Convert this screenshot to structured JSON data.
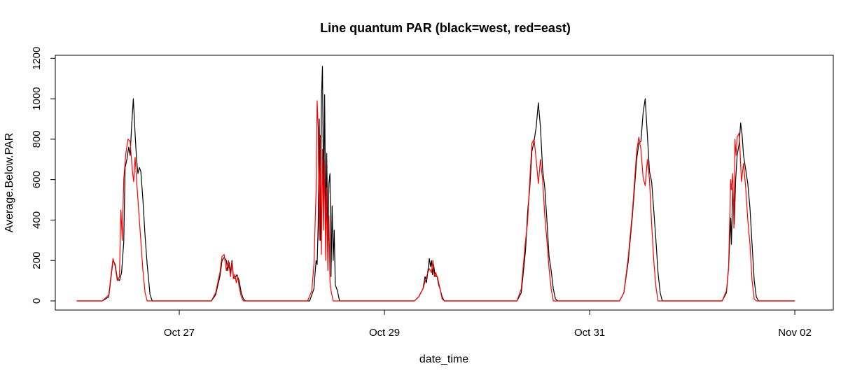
{
  "chart_data": {
    "type": "line",
    "title": "Line quantum PAR (black=west, red=east)",
    "xlabel": "date_time",
    "ylabel": "Average.Below.PAR",
    "x_unit": "date",
    "x_ticks": [
      {
        "label": "Oct 27",
        "date": "2023-10-27"
      },
      {
        "label": "Oct 29",
        "date": "2023-10-29"
      },
      {
        "label": "Oct 31",
        "date": "2023-10-31"
      },
      {
        "label": "Nov 02",
        "date": "2023-11-02"
      }
    ],
    "y_ticks": [
      0,
      200,
      400,
      600,
      800,
      1000,
      1200
    ],
    "xlim": [
      "2023-10-25 19:00",
      "2023-11-02 09:00"
    ],
    "ylim": [
      -45,
      1215
    ],
    "legend": "none",
    "grid": false,
    "series": [
      {
        "color": "#000000",
        "points": [
          [
            "2023-10-26 00:00",
            0
          ],
          [
            "2023-10-26 06:00",
            0
          ],
          [
            "2023-10-26 07:30",
            20
          ],
          [
            "2023-10-26 08:30",
            200
          ],
          [
            "2023-10-26 09:00",
            180
          ],
          [
            "2023-10-26 09:30",
            110
          ],
          [
            "2023-10-26 10:00",
            100
          ],
          [
            "2023-10-26 10:30",
            140
          ],
          [
            "2023-10-26 11:00",
            290
          ],
          [
            "2023-10-26 11:20",
            660
          ],
          [
            "2023-10-26 11:45",
            700
          ],
          [
            "2023-10-26 12:10",
            760
          ],
          [
            "2023-10-26 12:30",
            720
          ],
          [
            "2023-10-26 12:50",
            860
          ],
          [
            "2023-10-26 13:15",
            1000
          ],
          [
            "2023-10-26 13:40",
            830
          ],
          [
            "2023-10-26 14:00",
            700
          ],
          [
            "2023-10-26 14:20",
            630
          ],
          [
            "2023-10-26 14:40",
            660
          ],
          [
            "2023-10-26 15:00",
            640
          ],
          [
            "2023-10-26 15:30",
            500
          ],
          [
            "2023-10-26 16:00",
            320
          ],
          [
            "2023-10-26 16:30",
            180
          ],
          [
            "2023-10-26 17:10",
            30
          ],
          [
            "2023-10-26 17:40",
            0
          ],
          [
            "2023-10-27 07:30",
            0
          ],
          [
            "2023-10-27 08:30",
            30
          ],
          [
            "2023-10-27 09:30",
            120
          ],
          [
            "2023-10-27 10:00",
            200
          ],
          [
            "2023-10-27 10:30",
            215
          ],
          [
            "2023-10-27 11:00",
            200
          ],
          [
            "2023-10-27 11:20",
            150
          ],
          [
            "2023-10-27 11:40",
            190
          ],
          [
            "2023-10-27 12:00",
            140
          ],
          [
            "2023-10-27 12:20",
            200
          ],
          [
            "2023-10-27 12:40",
            120
          ],
          [
            "2023-10-27 13:00",
            110
          ],
          [
            "2023-10-27 13:30",
            130
          ],
          [
            "2023-10-27 14:00",
            100
          ],
          [
            "2023-10-27 14:30",
            40
          ],
          [
            "2023-10-27 15:00",
            10
          ],
          [
            "2023-10-27 15:30",
            0
          ],
          [
            "2023-10-28 06:30",
            0
          ],
          [
            "2023-10-28 07:30",
            60
          ],
          [
            "2023-10-28 08:00",
            200
          ],
          [
            "2023-10-28 08:15",
            180
          ],
          [
            "2023-10-28 08:30",
            380
          ],
          [
            "2023-10-28 08:45",
            900
          ],
          [
            "2023-10-28 09:00",
            300
          ],
          [
            "2023-10-28 09:15",
            1000
          ],
          [
            "2023-10-28 09:30",
            1160
          ],
          [
            "2023-10-28 09:45",
            500
          ],
          [
            "2023-10-28 10:00",
            1020
          ],
          [
            "2023-10-28 10:15",
            380
          ],
          [
            "2023-10-28 10:30",
            730
          ],
          [
            "2023-10-28 10:45",
            300
          ],
          [
            "2023-10-28 11:00",
            580
          ],
          [
            "2023-10-28 11:15",
            630
          ],
          [
            "2023-10-28 11:30",
            120
          ],
          [
            "2023-10-28 11:45",
            470
          ],
          [
            "2023-10-28 12:00",
            200
          ],
          [
            "2023-10-28 12:15",
            350
          ],
          [
            "2023-10-28 12:30",
            80
          ],
          [
            "2023-10-28 13:00",
            50
          ],
          [
            "2023-10-28 13:30",
            0
          ],
          [
            "2023-10-29 07:00",
            0
          ],
          [
            "2023-10-29 08:00",
            20
          ],
          [
            "2023-10-29 09:00",
            60
          ],
          [
            "2023-10-29 09:30",
            120
          ],
          [
            "2023-10-29 09:50",
            90
          ],
          [
            "2023-10-29 10:10",
            150
          ],
          [
            "2023-10-29 10:30",
            210
          ],
          [
            "2023-10-29 10:45",
            170
          ],
          [
            "2023-10-29 11:00",
            200
          ],
          [
            "2023-10-29 11:15",
            130
          ],
          [
            "2023-10-29 11:30",
            180
          ],
          [
            "2023-10-29 11:45",
            140
          ],
          [
            "2023-10-29 12:00",
            120
          ],
          [
            "2023-10-29 12:20",
            120
          ],
          [
            "2023-10-29 12:40",
            80
          ],
          [
            "2023-10-29 13:00",
            60
          ],
          [
            "2023-10-29 13:30",
            20
          ],
          [
            "2023-10-29 14:00",
            0
          ],
          [
            "2023-10-30 07:00",
            0
          ],
          [
            "2023-10-30 08:00",
            40
          ],
          [
            "2023-10-30 09:00",
            250
          ],
          [
            "2023-10-30 09:30",
            440
          ],
          [
            "2023-10-30 10:00",
            560
          ],
          [
            "2023-10-30 10:30",
            740
          ],
          [
            "2023-10-30 11:00",
            790
          ],
          [
            "2023-10-30 11:30",
            860
          ],
          [
            "2023-10-30 12:00",
            980
          ],
          [
            "2023-10-30 12:30",
            860
          ],
          [
            "2023-10-30 13:00",
            650
          ],
          [
            "2023-10-30 13:30",
            560
          ],
          [
            "2023-10-30 14:00",
            400
          ],
          [
            "2023-10-30 14:30",
            220
          ],
          [
            "2023-10-30 15:00",
            150
          ],
          [
            "2023-10-30 15:30",
            60
          ],
          [
            "2023-10-30 16:00",
            10
          ],
          [
            "2023-10-30 16:30",
            0
          ],
          [
            "2023-10-31 07:00",
            0
          ],
          [
            "2023-10-31 08:00",
            40
          ],
          [
            "2023-10-31 09:00",
            190
          ],
          [
            "2023-10-31 10:00",
            420
          ],
          [
            "2023-10-31 11:00",
            700
          ],
          [
            "2023-10-31 11:30",
            780
          ],
          [
            "2023-10-31 12:00",
            790
          ],
          [
            "2023-10-31 12:30",
            930
          ],
          [
            "2023-10-31 13:00",
            1000
          ],
          [
            "2023-10-31 13:30",
            820
          ],
          [
            "2023-10-31 14:00",
            640
          ],
          [
            "2023-10-31 14:30",
            590
          ],
          [
            "2023-10-31 15:00",
            450
          ],
          [
            "2023-10-31 15:30",
            300
          ],
          [
            "2023-10-31 16:00",
            140
          ],
          [
            "2023-10-31 16:30",
            40
          ],
          [
            "2023-10-31 17:00",
            0
          ],
          [
            "2023-11-01 07:00",
            0
          ],
          [
            "2023-11-01 08:00",
            40
          ],
          [
            "2023-11-01 08:30",
            160
          ],
          [
            "2023-11-01 09:00",
            410
          ],
          [
            "2023-11-01 09:10",
            280
          ],
          [
            "2023-11-01 09:30",
            560
          ],
          [
            "2023-11-01 09:50",
            380
          ],
          [
            "2023-11-01 10:10",
            600
          ],
          [
            "2023-11-01 10:30",
            720
          ],
          [
            "2023-11-01 11:00",
            780
          ],
          [
            "2023-11-01 11:20",
            880
          ],
          [
            "2023-11-01 11:40",
            820
          ],
          [
            "2023-11-01 12:00",
            720
          ],
          [
            "2023-11-01 12:30",
            650
          ],
          [
            "2023-11-01 13:00",
            580
          ],
          [
            "2023-11-01 13:30",
            460
          ],
          [
            "2023-11-01 14:00",
            280
          ],
          [
            "2023-11-01 14:30",
            100
          ],
          [
            "2023-11-01 15:00",
            20
          ],
          [
            "2023-11-01 15:30",
            0
          ],
          [
            "2023-11-02 00:00",
            0
          ]
        ]
      },
      {
        "color": "#ff0000",
        "points": [
          [
            "2023-10-26 00:00",
            0
          ],
          [
            "2023-10-26 06:00",
            0
          ],
          [
            "2023-10-26 07:30",
            30
          ],
          [
            "2023-10-26 08:30",
            210
          ],
          [
            "2023-10-26 09:00",
            170
          ],
          [
            "2023-10-26 09:30",
            100
          ],
          [
            "2023-10-26 10:00",
            120
          ],
          [
            "2023-10-26 10:20",
            450
          ],
          [
            "2023-10-26 10:40",
            300
          ],
          [
            "2023-10-26 11:00",
            600
          ],
          [
            "2023-10-26 11:30",
            730
          ],
          [
            "2023-10-26 12:00",
            800
          ],
          [
            "2023-10-26 12:30",
            790
          ],
          [
            "2023-10-26 13:00",
            650
          ],
          [
            "2023-10-26 13:20",
            590
          ],
          [
            "2023-10-26 13:40",
            710
          ],
          [
            "2023-10-26 14:00",
            600
          ],
          [
            "2023-10-26 14:30",
            450
          ],
          [
            "2023-10-26 15:00",
            300
          ],
          [
            "2023-10-26 15:30",
            150
          ],
          [
            "2023-10-26 16:00",
            40
          ],
          [
            "2023-10-26 16:30",
            0
          ],
          [
            "2023-10-27 07:30",
            0
          ],
          [
            "2023-10-27 08:30",
            40
          ],
          [
            "2023-10-27 09:30",
            140
          ],
          [
            "2023-10-27 10:00",
            220
          ],
          [
            "2023-10-27 10:30",
            230
          ],
          [
            "2023-10-27 11:00",
            150
          ],
          [
            "2023-10-27 11:30",
            200
          ],
          [
            "2023-10-27 12:00",
            120
          ],
          [
            "2023-10-27 12:20",
            190
          ],
          [
            "2023-10-27 12:40",
            110
          ],
          [
            "2023-10-27 13:00",
            130
          ],
          [
            "2023-10-27 13:20",
            90
          ],
          [
            "2023-10-27 13:40",
            120
          ],
          [
            "2023-10-27 14:00",
            70
          ],
          [
            "2023-10-27 14:30",
            20
          ],
          [
            "2023-10-27 15:00",
            0
          ],
          [
            "2023-10-28 06:00",
            0
          ],
          [
            "2023-10-28 07:00",
            50
          ],
          [
            "2023-10-28 07:30",
            180
          ],
          [
            "2023-10-28 08:00",
            540
          ],
          [
            "2023-10-28 08:15",
            990
          ],
          [
            "2023-10-28 08:30",
            860
          ],
          [
            "2023-10-28 08:45",
            300
          ],
          [
            "2023-10-28 09:00",
            820
          ],
          [
            "2023-10-28 09:15",
            230
          ],
          [
            "2023-10-28 09:30",
            750
          ],
          [
            "2023-10-28 09:45",
            350
          ],
          [
            "2023-10-28 10:00",
            700
          ],
          [
            "2023-10-28 10:15",
            200
          ],
          [
            "2023-10-28 10:30",
            560
          ],
          [
            "2023-10-28 10:45",
            150
          ],
          [
            "2023-10-28 11:00",
            420
          ],
          [
            "2023-10-28 11:15",
            100
          ],
          [
            "2023-10-28 11:30",
            50
          ],
          [
            "2023-10-28 12:00",
            0
          ],
          [
            "2023-10-29 07:00",
            0
          ],
          [
            "2023-10-29 08:00",
            20
          ],
          [
            "2023-10-29 09:00",
            60
          ],
          [
            "2023-10-29 10:00",
            130
          ],
          [
            "2023-10-29 10:30",
            160
          ],
          [
            "2023-10-29 11:00",
            140
          ],
          [
            "2023-10-29 11:20",
            200
          ],
          [
            "2023-10-29 11:40",
            120
          ],
          [
            "2023-10-29 12:00",
            140
          ],
          [
            "2023-10-29 12:30",
            110
          ],
          [
            "2023-10-29 13:00",
            60
          ],
          [
            "2023-10-29 13:30",
            10
          ],
          [
            "2023-10-29 14:00",
            0
          ],
          [
            "2023-10-30 07:00",
            0
          ],
          [
            "2023-10-30 08:00",
            60
          ],
          [
            "2023-10-30 09:00",
            300
          ],
          [
            "2023-10-30 09:30",
            390
          ],
          [
            "2023-10-30 10:00",
            600
          ],
          [
            "2023-10-30 10:30",
            780
          ],
          [
            "2023-10-30 11:00",
            800
          ],
          [
            "2023-10-30 11:30",
            700
          ],
          [
            "2023-10-30 12:00",
            580
          ],
          [
            "2023-10-30 12:30",
            700
          ],
          [
            "2023-10-30 13:00",
            600
          ],
          [
            "2023-10-30 13:30",
            420
          ],
          [
            "2023-10-30 14:00",
            300
          ],
          [
            "2023-10-30 14:30",
            160
          ],
          [
            "2023-10-30 15:00",
            60
          ],
          [
            "2023-10-30 15:30",
            0
          ],
          [
            "2023-10-31 07:00",
            0
          ],
          [
            "2023-10-31 08:00",
            40
          ],
          [
            "2023-10-31 09:00",
            210
          ],
          [
            "2023-10-31 10:00",
            440
          ],
          [
            "2023-10-31 11:00",
            740
          ],
          [
            "2023-10-31 11:30",
            810
          ],
          [
            "2023-10-31 12:00",
            750
          ],
          [
            "2023-10-31 12:30",
            610
          ],
          [
            "2023-10-31 13:00",
            570
          ],
          [
            "2023-10-31 13:30",
            700
          ],
          [
            "2023-10-31 14:00",
            600
          ],
          [
            "2023-10-31 14:30",
            380
          ],
          [
            "2023-10-31 15:00",
            200
          ],
          [
            "2023-10-31 15:30",
            70
          ],
          [
            "2023-10-31 16:00",
            0
          ],
          [
            "2023-11-01 07:00",
            0
          ],
          [
            "2023-11-01 08:00",
            50
          ],
          [
            "2023-11-01 08:30",
            160
          ],
          [
            "2023-11-01 09:00",
            600
          ],
          [
            "2023-11-01 09:10",
            550
          ],
          [
            "2023-11-01 09:30",
            630
          ],
          [
            "2023-11-01 09:45",
            360
          ],
          [
            "2023-11-01 10:00",
            800
          ],
          [
            "2023-11-01 10:15",
            720
          ],
          [
            "2023-11-01 10:30",
            810
          ],
          [
            "2023-11-01 11:00",
            830
          ],
          [
            "2023-11-01 11:30",
            590
          ],
          [
            "2023-11-01 12:00",
            680
          ],
          [
            "2023-11-01 12:30",
            560
          ],
          [
            "2023-11-01 13:00",
            400
          ],
          [
            "2023-11-01 13:30",
            280
          ],
          [
            "2023-11-01 14:00",
            100
          ],
          [
            "2023-11-01 14:30",
            10
          ],
          [
            "2023-11-01 15:00",
            0
          ],
          [
            "2023-11-02 00:00",
            0
          ]
        ]
      }
    ]
  }
}
